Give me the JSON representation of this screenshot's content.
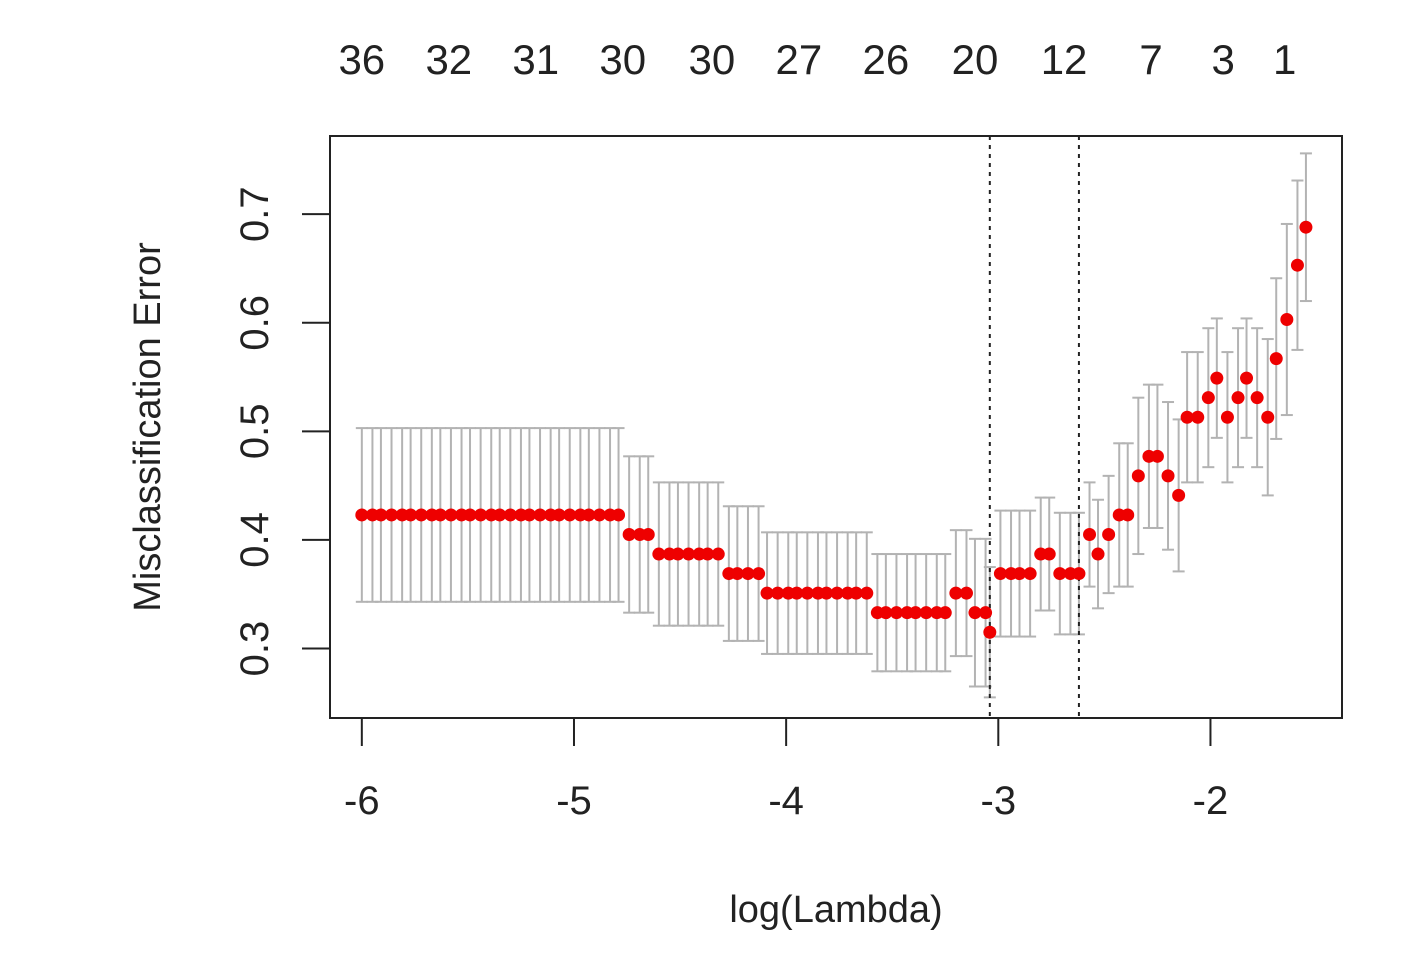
{
  "chart_data": {
    "type": "scatter",
    "title": "",
    "xlabel": "log(Lambda)",
    "ylabel": "Misclassification Error",
    "xlim": [
      -6.15,
      -1.38
    ],
    "ylim": [
      0.236,
      0.772
    ],
    "x_ticks": [
      -6,
      -5,
      -4,
      -3,
      -2
    ],
    "x_tick_labels": [
      "-6",
      "-5",
      "-4",
      "-3",
      "-2"
    ],
    "y_ticks": [
      0.3,
      0.4,
      0.5,
      0.6,
      0.7
    ],
    "y_tick_labels": [
      "0.3",
      "0.4",
      "0.5",
      "0.6",
      "0.7"
    ],
    "top_axis": {
      "x": [
        -6,
        -5.59,
        -5.18,
        -4.77,
        -4.35,
        -3.94,
        -3.53,
        -3.11,
        -2.69,
        -2.28,
        -1.94,
        -1.65
      ],
      "labels": [
        "36",
        "32",
        "31",
        "30",
        "30",
        "27",
        "26",
        "20",
        "12",
        "7",
        "3",
        "1"
      ]
    },
    "vlines": [
      -3.04,
      -2.62
    ],
    "grid": false,
    "point_color": "#ee0000",
    "errorbar_color": "#b3b3b3",
    "series": [
      {
        "x": [
          -6.0,
          -5.95,
          -5.91,
          -5.86,
          -5.81,
          -5.77,
          -5.72,
          -5.67,
          -5.63,
          -5.58,
          -5.53,
          -5.49,
          -5.44,
          -5.39,
          -5.35,
          -5.3,
          -5.25,
          -5.21,
          -5.16,
          -5.11,
          -5.07,
          -5.02,
          -4.97,
          -4.93,
          -4.88,
          -4.83,
          -4.79,
          -4.74,
          -4.69,
          -4.65,
          -4.6,
          -4.55,
          -4.51,
          -4.46,
          -4.41,
          -4.37,
          -4.32,
          -4.27,
          -4.23,
          -4.18,
          -4.13,
          -4.09,
          -4.04,
          -3.99,
          -3.95,
          -3.9,
          -3.85,
          -3.81,
          -3.76,
          -3.71,
          -3.67,
          -3.62,
          -3.57,
          -3.53,
          -3.48,
          -3.43,
          -3.39,
          -3.34,
          -3.29,
          -3.25,
          -3.2,
          -3.15,
          -3.11,
          -3.06,
          -3.04,
          -2.99,
          -2.94,
          -2.9,
          -2.85,
          -2.8,
          -2.76,
          -2.71,
          -2.66,
          -2.62,
          -2.57,
          -2.53,
          -2.48,
          -2.43,
          -2.39,
          -2.34,
          -2.29,
          -2.25,
          -2.2,
          -2.15,
          -2.11,
          -2.06,
          -2.01,
          -1.97,
          -1.92,
          -1.87,
          -1.83,
          -1.78,
          -1.73,
          -1.69,
          -1.64,
          -1.59,
          -1.55
        ],
        "y": [
          0.423,
          0.423,
          0.423,
          0.423,
          0.423,
          0.423,
          0.423,
          0.423,
          0.423,
          0.423,
          0.423,
          0.423,
          0.423,
          0.423,
          0.423,
          0.423,
          0.423,
          0.423,
          0.423,
          0.423,
          0.423,
          0.423,
          0.423,
          0.423,
          0.423,
          0.423,
          0.423,
          0.405,
          0.405,
          0.405,
          0.387,
          0.387,
          0.387,
          0.387,
          0.387,
          0.387,
          0.387,
          0.369,
          0.369,
          0.369,
          0.369,
          0.351,
          0.351,
          0.351,
          0.351,
          0.351,
          0.351,
          0.351,
          0.351,
          0.351,
          0.351,
          0.351,
          0.333,
          0.333,
          0.333,
          0.333,
          0.333,
          0.333,
          0.333,
          0.333,
          0.351,
          0.351,
          0.333,
          0.333,
          0.315,
          0.369,
          0.369,
          0.369,
          0.369,
          0.387,
          0.387,
          0.369,
          0.369,
          0.369,
          0.405,
          0.387,
          0.405,
          0.423,
          0.423,
          0.459,
          0.477,
          0.477,
          0.459,
          0.441,
          0.513,
          0.513,
          0.531,
          0.549,
          0.513,
          0.531,
          0.549,
          0.531,
          0.513,
          0.567,
          0.603,
          0.653,
          0.688
        ],
        "err": [
          0.08,
          0.08,
          0.08,
          0.08,
          0.08,
          0.08,
          0.08,
          0.08,
          0.08,
          0.08,
          0.08,
          0.08,
          0.08,
          0.08,
          0.08,
          0.08,
          0.08,
          0.08,
          0.08,
          0.08,
          0.08,
          0.08,
          0.08,
          0.08,
          0.08,
          0.08,
          0.08,
          0.072,
          0.072,
          0.072,
          0.066,
          0.066,
          0.066,
          0.066,
          0.066,
          0.066,
          0.066,
          0.062,
          0.062,
          0.062,
          0.062,
          0.056,
          0.056,
          0.056,
          0.056,
          0.056,
          0.056,
          0.056,
          0.056,
          0.056,
          0.056,
          0.056,
          0.054,
          0.054,
          0.054,
          0.054,
          0.054,
          0.054,
          0.054,
          0.054,
          0.058,
          0.058,
          0.068,
          0.068,
          0.06,
          0.058,
          0.058,
          0.058,
          0.058,
          0.052,
          0.052,
          0.056,
          0.056,
          0.056,
          0.048,
          0.05,
          0.054,
          0.066,
          0.066,
          0.072,
          0.066,
          0.066,
          0.068,
          0.07,
          0.06,
          0.06,
          0.064,
          0.055,
          0.06,
          0.064,
          0.055,
          0.064,
          0.072,
          0.074,
          0.088,
          0.078,
          0.068
        ]
      }
    ]
  }
}
